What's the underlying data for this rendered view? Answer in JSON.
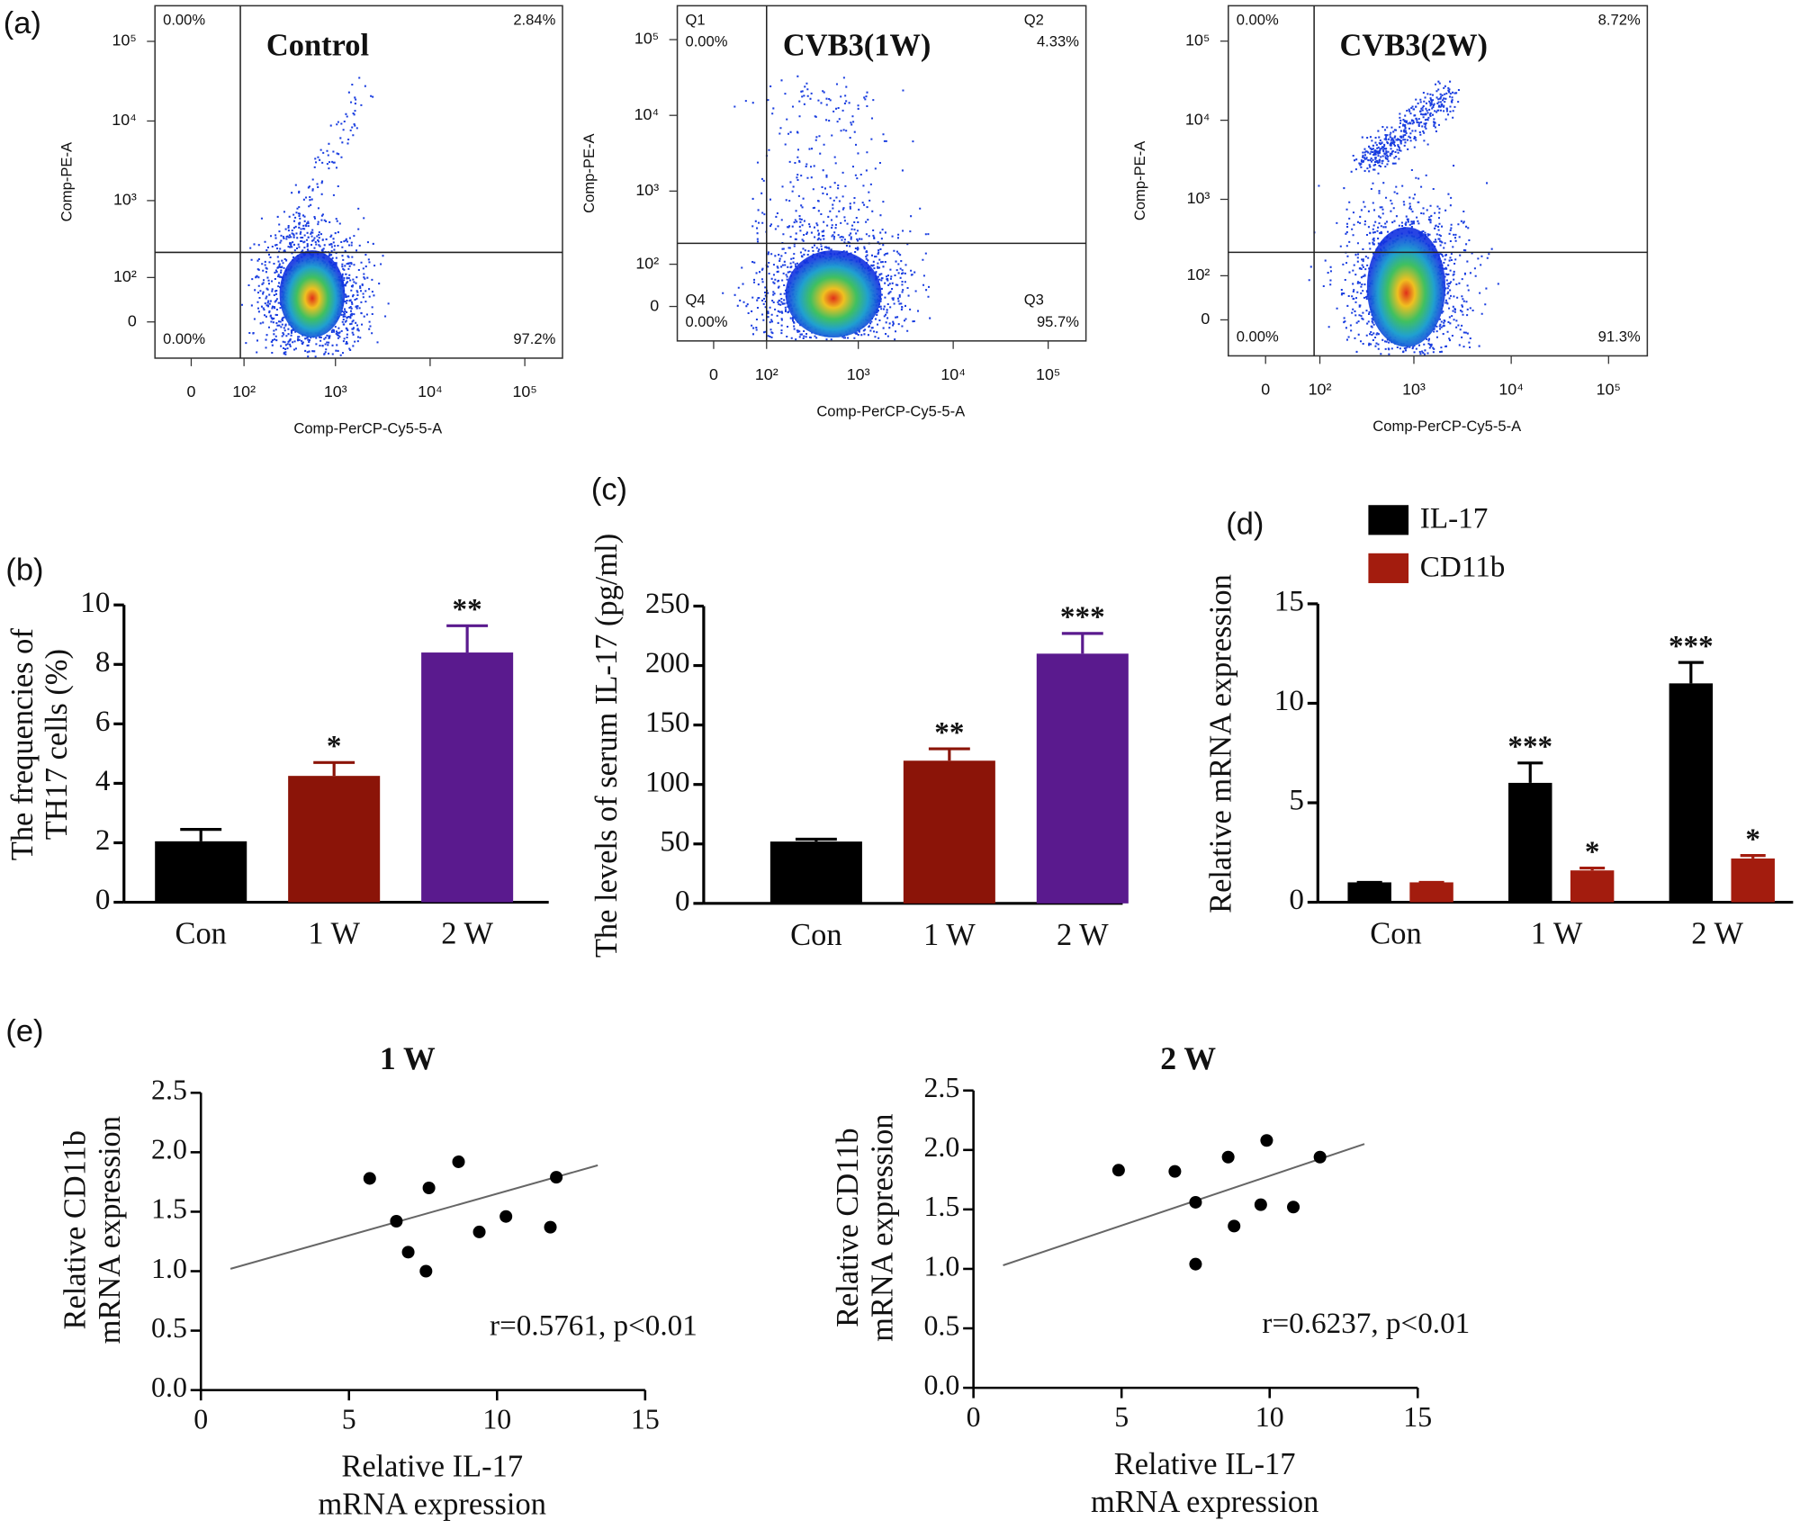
{
  "chart_data": [
    {
      "type": "flow",
      "panel_label": "(a)",
      "title": "Control",
      "xlabel": "Comp-PerCP-Cy5-5-A",
      "ylabel": "Comp-PE-A",
      "xlim": [
        -60,
        250000
      ],
      "ylim": [
        -75,
        280000
      ],
      "xticks": [
        0,
        {
          "value": 100,
          "label": "10²"
        },
        {
          "value": 1000,
          "label": "10³"
        },
        {
          "value": 10000,
          "label": "10⁴"
        },
        {
          "value": 100000,
          "label": "10⁵"
        }
      ],
      "yticks": [
        0,
        {
          "value": 100,
          "label": "10²"
        },
        {
          "value": 1000,
          "label": "10³"
        },
        {
          "value": 10000,
          "label": "10⁴"
        },
        {
          "value": 100000,
          "label": "10⁵"
        }
      ],
      "gate": {
        "x": 90,
        "y": 220
      },
      "quadrants": {
        "values": [
          0,
          2.84,
          97.2,
          0
        ],
        "value_labels": [
          "0.00%",
          "2.84%",
          "97.2%",
          "0.00%"
        ]
      }
    },
    {
      "type": "flow",
      "title": "CVB3(1W)",
      "xlabel": "Comp-PerCP-Cy5-5-A",
      "ylabel": "Comp-PE-A",
      "xlim": [
        -60,
        250000
      ],
      "ylim": [
        -75,
        280000
      ],
      "xticks": [
        0,
        {
          "value": 100,
          "label": "10²"
        },
        {
          "value": 1000,
          "label": "10³"
        },
        {
          "value": 10000,
          "label": "10⁴"
        },
        {
          "value": 100000,
          "label": "10⁵"
        }
      ],
      "yticks": [
        0,
        {
          "value": 100,
          "label": "10²"
        },
        {
          "value": 1000,
          "label": "10³"
        },
        {
          "value": 10000,
          "label": "10⁴"
        },
        {
          "value": 100000,
          "label": "10⁵"
        }
      ],
      "gate": {
        "x": 100,
        "y": 200
      },
      "quadrants": {
        "names": [
          "Q1",
          "Q2",
          "Q3",
          "Q4"
        ],
        "values": [
          0,
          4.33,
          95.7,
          0
        ],
        "value_labels": [
          "0.00%",
          "4.33%",
          "95.7%",
          "0.00%"
        ]
      }
    },
    {
      "type": "flow",
      "title": "CVB3(2W)",
      "xlabel": "Comp-PerCP-Cy5-5-A",
      "ylabel": "Comp-PE-A",
      "xlim": [
        -60,
        250000
      ],
      "ylim": [
        -75,
        280000
      ],
      "xticks": [
        0,
        {
          "value": 100,
          "label": "10²"
        },
        {
          "value": 1000,
          "label": "10³"
        },
        {
          "value": 10000,
          "label": "10⁴"
        },
        {
          "value": 100000,
          "label": "10⁵"
        }
      ],
      "yticks": [
        0,
        {
          "value": 100,
          "label": "10²"
        },
        {
          "value": 1000,
          "label": "10³"
        },
        {
          "value": 10000,
          "label": "10⁴"
        },
        {
          "value": 100000,
          "label": "10⁵"
        }
      ],
      "gate": {
        "x": 85,
        "y": 210
      },
      "quadrants": {
        "values": [
          0,
          8.72,
          91.3,
          0
        ],
        "value_labels": [
          "0.00%",
          "8.72%",
          "91.3%",
          "0.00%"
        ]
      }
    },
    {
      "type": "bar",
      "panel_label": "(b)",
      "ylabel": [
        "The frequencies of",
        "TH17 cells (%)"
      ],
      "categories": [
        "Con",
        "1 W",
        "2 W"
      ],
      "values": [
        2.05,
        4.25,
        8.4
      ],
      "errors": [
        0.4,
        0.45,
        0.9
      ],
      "colors": [
        "#000000",
        "#8b1408",
        "#5a1a8e"
      ],
      "significance": [
        null,
        "*",
        "**"
      ],
      "ylim": [
        0,
        10
      ],
      "yticks": [
        0,
        2,
        4,
        6,
        8,
        10
      ]
    },
    {
      "type": "bar",
      "panel_label": "(c)",
      "ylabel": "The levels of serum IL-17 (pg/ml)",
      "categories": [
        "Con",
        "1 W",
        "2 W"
      ],
      "values": [
        52,
        120,
        210
      ],
      "errors": [
        2,
        10,
        17
      ],
      "colors": [
        "#000000",
        "#8b1408",
        "#5a1a8e"
      ],
      "significance": [
        null,
        "**",
        "***"
      ],
      "ylim": [
        0,
        250
      ],
      "yticks": [
        0,
        50,
        100,
        150,
        200,
        250
      ]
    },
    {
      "type": "grouped_bar",
      "panel_label": "(d)",
      "ylabel": "Relative mRNA expression",
      "categories": [
        "Con",
        "1 W",
        "2 W"
      ],
      "series": [
        {
          "name": "IL-17",
          "color": "#000000",
          "values": [
            1,
            6,
            11
          ],
          "errors": [
            0,
            1.0,
            1.05
          ],
          "significance": [
            null,
            "***",
            "***"
          ]
        },
        {
          "name": "CD11b",
          "color": "#a31c0e",
          "values": [
            1,
            1.6,
            2.2
          ],
          "errors": [
            0,
            0.12,
            0.15
          ],
          "significance": [
            null,
            "*",
            "*"
          ]
        }
      ],
      "ylim": [
        0,
        15
      ],
      "yticks": [
        0,
        5,
        10,
        15
      ]
    },
    {
      "type": "scatter",
      "panel_label": "(e)",
      "title": "1 W",
      "xlabel": [
        "Relative IL-17",
        "mRNA expression"
      ],
      "ylabel": [
        "Relative CD11b",
        "mRNA expression"
      ],
      "x": [
        5.7,
        6.6,
        7.0,
        7.6,
        7.7,
        8.7,
        9.4,
        10.3,
        11.8,
        12.0
      ],
      "y": [
        1.78,
        1.42,
        1.16,
        1.0,
        1.7,
        1.92,
        1.33,
        1.46,
        1.37,
        1.79
      ],
      "fit": {
        "x": [
          1,
          13.4
        ],
        "y": [
          1.02,
          1.89
        ]
      },
      "annotation": "r=0.5761, p<0.01",
      "xlim": [
        0,
        15
      ],
      "xticks": [
        0,
        5,
        10,
        15
      ],
      "ylim": [
        0,
        2.5
      ],
      "yticks": [
        {
          "value": 0,
          "label": "0.0"
        },
        0.5,
        {
          "value": 1,
          "label": "1.0"
        },
        1.5,
        {
          "value": 2,
          "label": "2.0"
        },
        2.5
      ]
    },
    {
      "type": "scatter",
      "title": "2 W",
      "xlabel": [
        "Relative IL-17",
        "mRNA expression"
      ],
      "ylabel": [
        "Relative CD11b",
        "mRNA expression"
      ],
      "x": [
        4.9,
        6.8,
        7.5,
        7.5,
        8.6,
        8.8,
        9.7,
        9.9,
        10.8,
        11.7
      ],
      "y": [
        1.83,
        1.82,
        1.56,
        1.04,
        1.94,
        1.36,
        1.54,
        2.08,
        1.52,
        1.94
      ],
      "fit": {
        "x": [
          1,
          13.2
        ],
        "y": [
          1.03,
          2.05
        ]
      },
      "annotation": "r=0.6237, p<0.01",
      "xlim": [
        0,
        15
      ],
      "xticks": [
        0,
        5,
        10,
        15
      ],
      "ylim": [
        0,
        2.5
      ],
      "yticks": [
        {
          "value": 0,
          "label": "0.0"
        },
        0.5,
        {
          "value": 1,
          "label": "1.0"
        },
        1.5,
        {
          "value": 2,
          "label": "2.0"
        },
        2.5
      ]
    }
  ]
}
